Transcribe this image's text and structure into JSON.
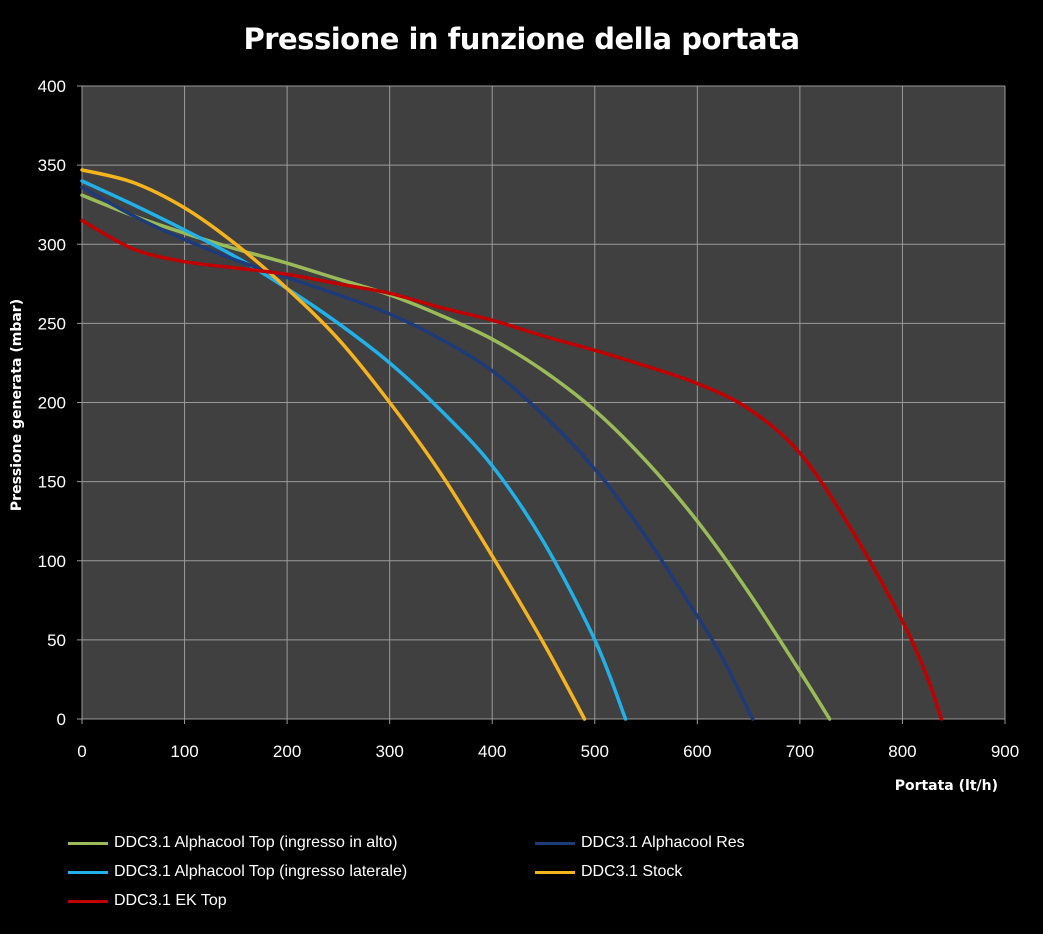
{
  "chart_data": {
    "type": "line",
    "title": "Pressione in funzione della portata",
    "xlabel": "Portata (lt/h)",
    "ylabel": "Pressione generata (mbar)",
    "xlim": [
      0,
      900
    ],
    "ylim": [
      0,
      400
    ],
    "x_ticks": [
      0,
      100,
      200,
      300,
      400,
      500,
      600,
      700,
      800,
      900
    ],
    "y_ticks": [
      0,
      50,
      100,
      150,
      200,
      250,
      300,
      350,
      400
    ],
    "grid": true,
    "legend_position": "bottom",
    "plot_background": "#404040",
    "grid_color": "#9a9a9a",
    "series": [
      {
        "name": "DDC3.1 Alphacool Top (ingresso in alto)",
        "color": "#9bbb59",
        "x": [
          0,
          50,
          100,
          150,
          200,
          250,
          300,
          350,
          400,
          450,
          500,
          550,
          600,
          650,
          700,
          729
        ],
        "y": [
          331,
          318,
          307,
          297,
          288,
          278,
          268,
          255,
          240,
          220,
          195,
          163,
          125,
          80,
          30,
          0
        ]
      },
      {
        "name": "DDC3.1 Alphacool Res",
        "color": "#1f3a78",
        "x": [
          0,
          50,
          100,
          150,
          200,
          250,
          300,
          350,
          400,
          450,
          500,
          550,
          600,
          625,
          654
        ],
        "y": [
          336,
          318,
          303,
          290,
          279,
          268,
          256,
          240,
          220,
          192,
          158,
          115,
          65,
          38,
          0
        ]
      },
      {
        "name": "DDC3.1 Alphacool Top (ingresso laterale)",
        "color": "#22b0e8",
        "x": [
          0,
          50,
          100,
          150,
          200,
          250,
          300,
          350,
          400,
          450,
          500,
          530
        ],
        "y": [
          340,
          325,
          309,
          292,
          272,
          250,
          225,
          195,
          160,
          112,
          50,
          0
        ]
      },
      {
        "name": "DDC3.1 Stock",
        "color": "#f5b31e",
        "x": [
          0,
          50,
          100,
          150,
          200,
          250,
          300,
          350,
          400,
          450,
          490
        ],
        "y": [
          347,
          339,
          323,
          300,
          272,
          240,
          200,
          155,
          103,
          48,
          0
        ]
      },
      {
        "name": "DDC3.1 EK Top",
        "color": "#c00000",
        "x": [
          0,
          50,
          100,
          150,
          200,
          250,
          300,
          350,
          400,
          450,
          500,
          550,
          600,
          650,
          700,
          750,
          800,
          825,
          838
        ],
        "y": [
          315,
          297,
          289,
          285,
          281,
          275,
          269,
          260,
          252,
          242,
          233,
          223,
          212,
          196,
          168,
          120,
          62,
          25,
          0
        ]
      }
    ]
  }
}
